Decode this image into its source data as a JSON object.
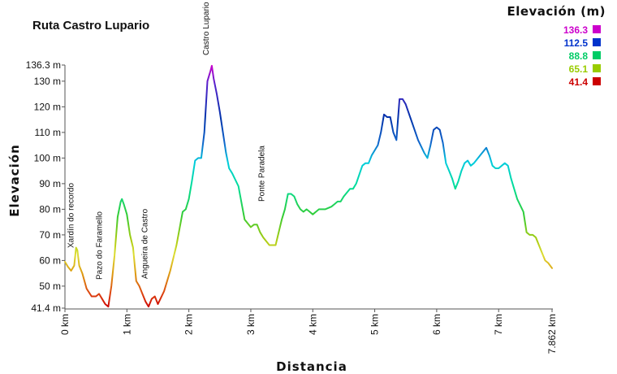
{
  "chart_data": {
    "type": "line",
    "title": "Ruta Castro Lupario",
    "xlabel": "Distancia",
    "ylabel": "Elevación",
    "xlim": [
      0,
      7.862
    ],
    "ylim": [
      41.4,
      136.3
    ],
    "grid": false,
    "x_ticks": [
      {
        "value": 0,
        "label": "0 km"
      },
      {
        "value": 1,
        "label": "1 km"
      },
      {
        "value": 2,
        "label": "2 km"
      },
      {
        "value": 3,
        "label": "3 km"
      },
      {
        "value": 4,
        "label": "4 km"
      },
      {
        "value": 5,
        "label": "5 km"
      },
      {
        "value": 6,
        "label": "6 km"
      },
      {
        "value": 7,
        "label": "7 km"
      },
      {
        "value": 7.862,
        "label": "7.862 km"
      }
    ],
    "y_ticks": [
      {
        "value": 41.4,
        "label": "41.4 m"
      },
      {
        "value": 50,
        "label": "50 m"
      },
      {
        "value": 60,
        "label": "60 m"
      },
      {
        "value": 70,
        "label": "70 m"
      },
      {
        "value": 80,
        "label": "80 m"
      },
      {
        "value": 90,
        "label": "90 m"
      },
      {
        "value": 100,
        "label": "100 m"
      },
      {
        "value": 110,
        "label": "110 m"
      },
      {
        "value": 120,
        "label": "120 m"
      },
      {
        "value": 130,
        "label": "130 m"
      },
      {
        "value": 136.3,
        "label": "136.3 m"
      }
    ],
    "legend": {
      "title": "Elevación (m)",
      "position": "top-right",
      "entries": [
        {
          "label": "136.3",
          "color": "#cc00cc"
        },
        {
          "label": "112.5",
          "color": "#0033cc"
        },
        {
          "label": "88.8",
          "color": "#00cc66"
        },
        {
          "label": "65.1",
          "color": "#99cc00"
        },
        {
          "label": "41.4",
          "color": "#cc0000"
        }
      ]
    },
    "annotations": [
      {
        "label": "Xardín do recordo",
        "x": 0.19
      },
      {
        "label": "Pazo do Faramello",
        "x": 0.65
      },
      {
        "label": "Angueira de Castro",
        "x": 1.38
      },
      {
        "label": "Castro Lupario",
        "x": 2.37
      },
      {
        "label": "Ponte Paradela",
        "x": 3.27
      }
    ],
    "series": [
      {
        "x": [
          0,
          0.05,
          0.1,
          0.15,
          0.18,
          0.2,
          0.23,
          0.28,
          0.35,
          0.43,
          0.5,
          0.55,
          0.6,
          0.65,
          0.7,
          0.75,
          0.8,
          0.85,
          0.9,
          0.92,
          0.95,
          1.0,
          1.05,
          1.1,
          1.15,
          1.2,
          1.25,
          1.3,
          1.35,
          1.4,
          1.45,
          1.5,
          1.6,
          1.7,
          1.8,
          1.9,
          1.95,
          2.0,
          2.05,
          2.1,
          2.15,
          2.2,
          2.25,
          2.3,
          2.35,
          2.37,
          2.4,
          2.45,
          2.5,
          2.55,
          2.6,
          2.65,
          2.7,
          2.8,
          2.9,
          3.0,
          3.05,
          3.1,
          3.15,
          3.2,
          3.3,
          3.4,
          3.45,
          3.5,
          3.55,
          3.6,
          3.65,
          3.7,
          3.75,
          3.8,
          3.85,
          3.9,
          3.95,
          4.0,
          4.05,
          4.1,
          4.2,
          4.3,
          4.35,
          4.4,
          4.45,
          4.5,
          4.6,
          4.65,
          4.7,
          4.8,
          4.85,
          4.9,
          4.95,
          5.0,
          5.05,
          5.1,
          5.15,
          5.2,
          5.25,
          5.3,
          5.35,
          5.4,
          5.45,
          5.5,
          5.6,
          5.7,
          5.8,
          5.85,
          5.9,
          5.95,
          6.0,
          6.05,
          6.1,
          6.15,
          6.2,
          6.25,
          6.3,
          6.35,
          6.4,
          6.45,
          6.5,
          6.55,
          6.6,
          6.7,
          6.8,
          6.85,
          6.9,
          6.95,
          7.0,
          7.05,
          7.1,
          7.15,
          7.2,
          7.3,
          7.4,
          7.45,
          7.5,
          7.55,
          7.6,
          7.7,
          7.75,
          7.8,
          7.862
        ],
        "y": [
          59.5,
          57.5,
          56,
          58,
          65,
          64,
          58,
          55,
          49,
          46,
          46,
          47,
          45,
          43,
          42,
          50,
          62,
          77,
          83,
          84,
          82,
          78,
          70,
          65,
          52,
          50,
          47,
          44,
          42,
          45,
          46,
          43,
          48,
          56,
          66,
          79,
          80,
          84,
          91,
          99,
          100,
          100,
          110,
          130,
          134,
          136,
          131,
          125,
          118,
          110,
          102,
          96,
          94,
          89,
          76,
          73,
          74,
          74,
          71,
          69,
          66,
          66,
          71,
          76,
          80,
          86,
          86,
          85,
          82,
          80,
          79,
          80,
          79,
          78,
          79,
          80,
          80,
          81,
          82,
          83,
          83,
          85,
          88,
          88,
          90,
          97,
          98,
          98,
          101,
          103,
          105,
          110,
          117,
          116,
          116,
          110,
          107,
          123,
          123,
          121,
          114,
          107,
          102,
          100,
          105,
          111,
          112,
          111,
          106,
          98,
          95,
          92,
          88,
          91,
          95,
          98,
          99,
          97,
          98,
          101,
          104,
          101,
          97,
          96,
          96,
          97,
          98,
          97,
          92,
          84,
          79,
          71,
          70,
          70,
          69,
          63,
          60,
          59,
          57
        ]
      }
    ]
  }
}
